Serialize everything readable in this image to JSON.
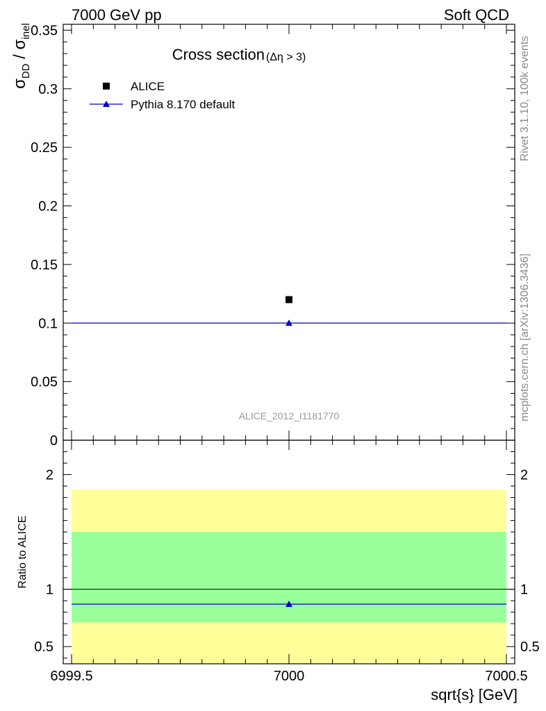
{
  "header": {
    "left": "7000 GeV pp",
    "right": "Soft QCD"
  },
  "side_labels": {
    "rivet": "Rivet 3.1.10,  100k events",
    "mcplots": "mcplots.cern.ch [arXiv:1306.3436]"
  },
  "chart_data": [
    {
      "type": "scatter",
      "title": "Cross section",
      "title_sub": "(Δη > 3)",
      "ylabel_parts": {
        "a": "σ",
        "a_sub": "DD",
        "sep": " / ",
        "b": "σ",
        "b_sub": "inel"
      },
      "xlabel": "",
      "xlim": [
        6999.5,
        7000.5
      ],
      "ylim": [
        0,
        0.355
      ],
      "yticks": [
        0,
        0.05,
        0.1,
        0.15,
        0.2,
        0.25,
        0.3,
        0.35
      ],
      "ytick_labels": [
        "0",
        "0.05",
        "0.1",
        "0.15",
        "0.2",
        "0.25",
        "0.3",
        "0.35"
      ],
      "legend_position": "top-left",
      "watermark": "ALICE_2012_I1181770",
      "series": [
        {
          "name": "ALICE",
          "marker": "square",
          "color": "#000000",
          "points": [
            {
              "x": 7000,
              "y": 0.12
            }
          ]
        },
        {
          "name": "Pythia 8.170 default",
          "marker": "triangle",
          "color": "#0000cc",
          "line": true,
          "points": [
            {
              "x": 7000,
              "y": 0.1
            }
          ]
        }
      ]
    },
    {
      "type": "scatter",
      "ylabel": "Ratio to ALICE",
      "xlabel": "sqrt{s} [GeV]",
      "xlim": [
        6999.5,
        7000.5
      ],
      "ylim": [
        0.35,
        2.3
      ],
      "xticks": [
        6999.5,
        7000,
        7000.5
      ],
      "xtick_labels": [
        "6999.5",
        "7000",
        "7000.5"
      ],
      "yticks": [
        0.5,
        1,
        2
      ],
      "ytick_labels": [
        "0.5",
        "1",
        "2"
      ],
      "reference_line": 1,
      "bands": [
        {
          "kind": "outer",
          "color": "#ffff99",
          "low": 0.35,
          "high": 1.87
        },
        {
          "kind": "inner",
          "color": "#99ff99",
          "low": 0.71,
          "high": 1.5
        }
      ],
      "series": [
        {
          "name": "Pythia 8.170 default",
          "marker": "triangle",
          "color": "#0000cc",
          "line": true,
          "points": [
            {
              "x": 7000,
              "y": 0.87
            }
          ]
        }
      ]
    }
  ]
}
